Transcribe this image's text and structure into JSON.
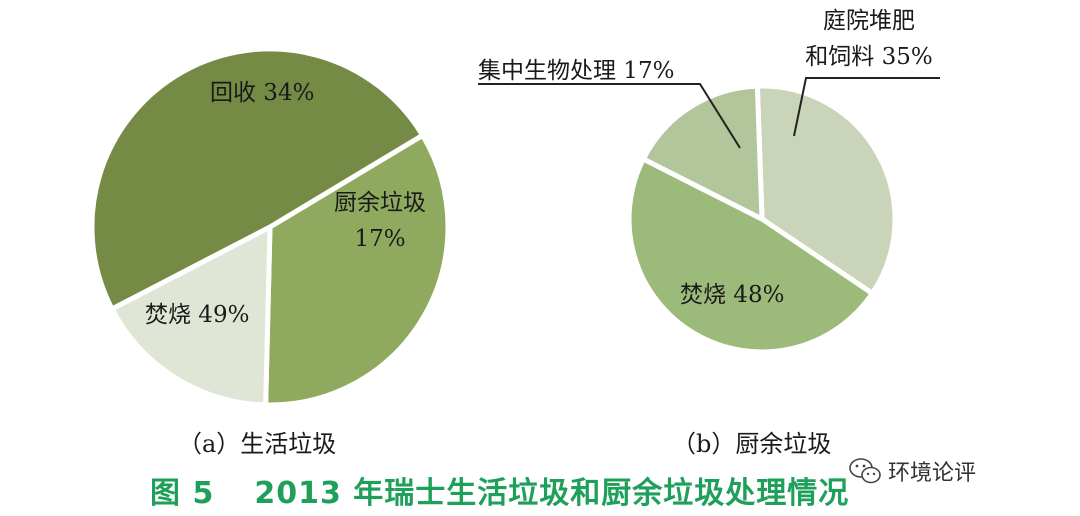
{
  "figure": {
    "number": "图 5",
    "title": "2013 年瑞士生活垃圾和厨余垃圾处理情况"
  },
  "watermark": {
    "icon": "wechat-icon",
    "text": "环境论评"
  },
  "chart_data": [
    {
      "type": "pie",
      "subcaption": "（a）生活垃圾",
      "slices": [
        {
          "label": "回收",
          "value": 34,
          "text": "回收 34%",
          "color": "#8faa5e"
        },
        {
          "label": "厨余垃圾",
          "value": 17,
          "text": [
            "厨余垃圾",
            "17%"
          ],
          "color": "#e0e6d6"
        },
        {
          "label": "焚烧",
          "value": 49,
          "text": "焚烧 49%",
          "color": "#748a45"
        }
      ]
    },
    {
      "type": "pie",
      "subcaption": "（b）厨余垃圾",
      "slices": [
        {
          "label": "庭院堆肥和饲料",
          "value": 35,
          "text": [
            "庭院堆肥",
            "和饲料 35%"
          ],
          "color": "#c9d4b8"
        },
        {
          "label": "焚烧",
          "value": 48,
          "text": "焚烧 48%",
          "color": "#9cba79"
        },
        {
          "label": "集中生物处理",
          "value": 17,
          "text": "集中生物处理 17%",
          "color": "#b2c59b"
        }
      ]
    }
  ]
}
